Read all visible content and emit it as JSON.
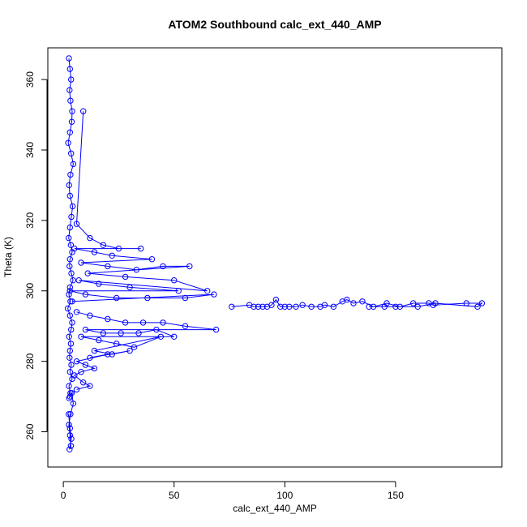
{
  "chart_data": {
    "type": "scatter",
    "title": "ATOM2 Southbound calc_ext_440_AMP",
    "xlabel": "calc_ext_440_AMP",
    "ylabel": "Theta (K)",
    "xlim": [
      -7,
      198
    ],
    "ylim": [
      250,
      369
    ],
    "xticks": [
      0,
      50,
      100,
      150
    ],
    "yticks": [
      260,
      280,
      300,
      320,
      340,
      360
    ],
    "grid": false,
    "legend": "none",
    "colors": {
      "series": "#0000ff",
      "axes": "#000000"
    },
    "marker": "open-circle",
    "connected": true,
    "series": [
      {
        "x": [
          2.5,
          3.0,
          3.5,
          2.8,
          3.2,
          4.0,
          3.8,
          3.0,
          2.2,
          3.5,
          4.5,
          3.2,
          2.6,
          3.0,
          4.2,
          3.6,
          3.0,
          2.4,
          3.4,
          4.0,
          3.0,
          2.8,
          3.6,
          4.4,
          3.0,
          2.5,
          3.2,
          2.0,
          3.0,
          4.0,
          3.5,
          2.6,
          3.4,
          3.0,
          2.8,
          3.6,
          3.0,
          4.0,
          2.5,
          3.2,
          3.0,
          2.6,
          3.8,
          4.5,
          3.2,
          2.5,
          3.0,
          3.4,
          2.8,
          3.6,
          3.0,
          2.4
        ],
        "y": [
          366.0,
          363.0,
          360.0,
          357.0,
          354.0,
          351.0,
          348.0,
          345.0,
          342.0,
          339.0,
          336.0,
          333.0,
          330.0,
          327.0,
          324.0,
          321.0,
          318.0,
          315.0,
          313.0,
          311.0,
          309.0,
          307.0,
          305.0,
          303.0,
          301.0,
          299.0,
          297.0,
          295.0,
          293.0,
          291.0,
          289.0,
          287.0,
          285.0,
          283.0,
          281.0,
          279.0,
          277.0,
          275.0,
          273.0,
          271.0,
          270.0,
          269.5,
          271.0,
          268.0,
          265.0,
          262.0,
          259.0,
          256.0,
          255.0,
          258.0,
          261.0,
          265.0
        ]
      },
      {
        "x": [
          9,
          6,
          12,
          18,
          25,
          35,
          5,
          14,
          22,
          40,
          8,
          20,
          33,
          45,
          57,
          11,
          28,
          50,
          65,
          7,
          16,
          30,
          52,
          3,
          10,
          24,
          38,
          55,
          68,
          4
        ],
        "y": [
          351,
          319,
          315,
          313,
          312,
          312,
          312,
          311,
          310,
          309,
          308,
          307,
          306,
          307,
          307,
          305,
          304,
          303,
          300,
          303,
          302,
          301,
          300,
          300,
          299,
          298,
          298,
          298,
          299,
          297
        ]
      },
      {
        "x": [
          76,
          84,
          86,
          88,
          90,
          92,
          94,
          96,
          98,
          100,
          102,
          105,
          108,
          112,
          116,
          118,
          122,
          126,
          128,
          131,
          135,
          140,
          146,
          152,
          158,
          165,
          167,
          182,
          189,
          187,
          168,
          160,
          150,
          145,
          138
        ],
        "y": [
          295.5,
          296,
          295.5,
          295.5,
          295.5,
          295.5,
          296,
          297.5,
          295.5,
          295.5,
          295.5,
          295.5,
          296,
          295.5,
          295.5,
          296,
          295.5,
          297,
          297.5,
          296.5,
          297,
          295.5,
          296.5,
          295.5,
          296.5,
          296.5,
          296,
          296.5,
          296.5,
          295.5,
          296.5,
          295.5,
          295.5,
          295.5,
          295.5
        ]
      },
      {
        "x": [
          6,
          12,
          20,
          28,
          36,
          45,
          55,
          69,
          10,
          18,
          26,
          34,
          42,
          50,
          8,
          16,
          24,
          32,
          44,
          14,
          22,
          30,
          12,
          20,
          6,
          10,
          14,
          8,
          5,
          9,
          12,
          6
        ],
        "y": [
          294,
          293,
          292,
          291,
          291,
          291,
          290,
          289,
          289,
          288,
          288,
          288,
          289,
          287,
          287,
          286,
          285,
          284,
          287,
          283,
          282,
          283,
          281,
          282,
          280,
          279,
          278,
          277,
          276,
          274,
          273,
          272
        ]
      }
    ]
  }
}
